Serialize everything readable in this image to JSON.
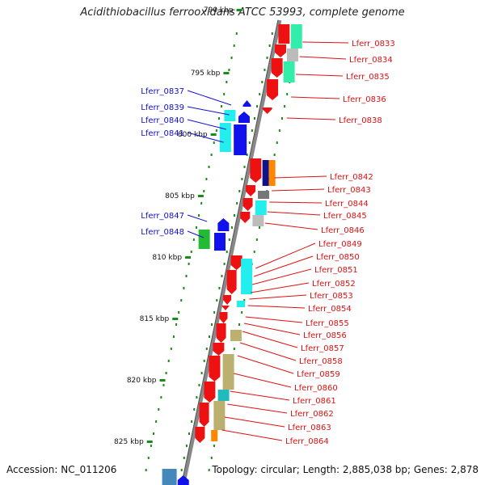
{
  "title": "Acidithiobacillus ferrooxidans ATCC 53993, complete genome",
  "footer": {
    "accession": "Accession: NC_011206",
    "topology": "Topology: circular; Length: 2,885,038 bp; Genes: 2,878"
  },
  "scale_labels": [
    "790 kbp",
    "795 kbp",
    "800 kbp",
    "805 kbp",
    "810 kbp",
    "815 kbp",
    "820 kbp",
    "825 kbp"
  ],
  "colors": {
    "backbone": "#888888",
    "forward_label": "#1010cc",
    "reverse_label": "#dd1111",
    "tick": "#1a8a1a",
    "red_gene": "#ee1111",
    "blue_gene": "#1111ee",
    "cyan_gene": "#22eeee",
    "mint_gene": "#33eeaa",
    "green_gene": "#22bb33",
    "grey_gene": "#bbbbbb",
    "darkgrey_gene": "#777777",
    "orange_gene": "#ff8800",
    "navy_gene": "#111188",
    "khaki_gene": "#bbb070",
    "teal_gene": "#22bbbb",
    "steelblue_gene": "#4488bb"
  },
  "forward_labels": [
    "Lferr_0837",
    "Lferr_0839",
    "Lferr_0840",
    "Lferr_0841",
    "Lferr_0847",
    "Lferr_0848"
  ],
  "reverse_labels": [
    "Lferr_0833",
    "Lferr_0834",
    "Lferr_0835",
    "Lferr_0836",
    "Lferr_0838",
    "Lferr_0842",
    "Lferr_0843",
    "Lferr_0844",
    "Lferr_0845",
    "Lferr_0846",
    "Lferr_0849",
    "Lferr_0850",
    "Lferr_0851",
    "Lferr_0852",
    "Lferr_0853",
    "Lferr_0854",
    "Lferr_0855",
    "Lferr_0856",
    "Lferr_0857",
    "Lferr_0858",
    "Lferr_0859",
    "Lferr_0860",
    "Lferr_0861",
    "Lferr_0862",
    "Lferr_0863",
    "Lferr_0864"
  ]
}
